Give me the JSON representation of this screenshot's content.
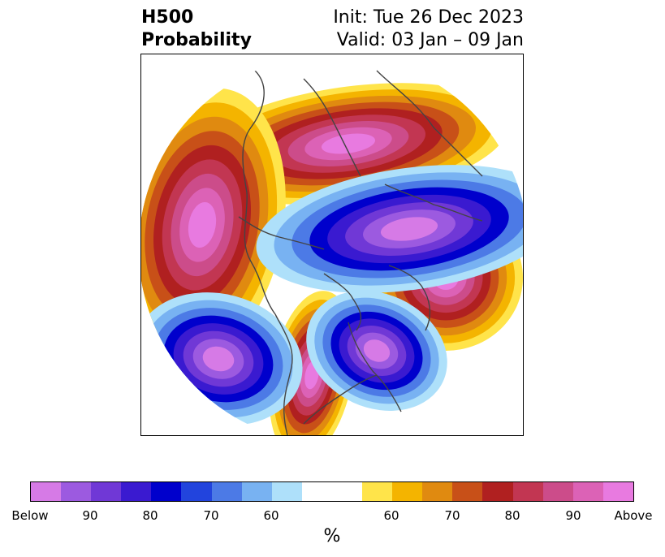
{
  "title": {
    "left_line1": "H500",
    "left_line2": "Probability",
    "right_line1": "Init: Tue 26 Dec 2023",
    "right_line2": "Valid: 03 Jan – 09 Jan"
  },
  "colorbar": {
    "segments": [
      "#d67ae6",
      "#9c5ae0",
      "#7038d6",
      "#3a1ad0",
      "#0000cc",
      "#2244dd",
      "#4c7ae6",
      "#78b2f2",
      "#aee0fa",
      "#ffffff",
      "#ffffff",
      "#ffe44a",
      "#f4b400",
      "#e08a10",
      "#c85018",
      "#b02020",
      "#c23652",
      "#cc4c8a",
      "#dc62b6",
      "#e87ae0"
    ],
    "tick_labels": [
      "Below",
      "90",
      "80",
      "70",
      "60",
      "60",
      "70",
      "80",
      "90",
      "Above"
    ],
    "unit": "%"
  },
  "map": {
    "projection": "polar-stereographic-north",
    "below_color_ramp": [
      "#aee0fa",
      "#78b2f2",
      "#4c7ae6",
      "#0000cc",
      "#3a1ad0",
      "#7038d6",
      "#9c5ae0",
      "#d67ae6"
    ],
    "above_color_ramp": [
      "#ffe44a",
      "#f4b400",
      "#e08a10",
      "#c85018",
      "#b02020",
      "#c23652",
      "#cc4c8a",
      "#dc62b6",
      "#e87ae0"
    ]
  }
}
